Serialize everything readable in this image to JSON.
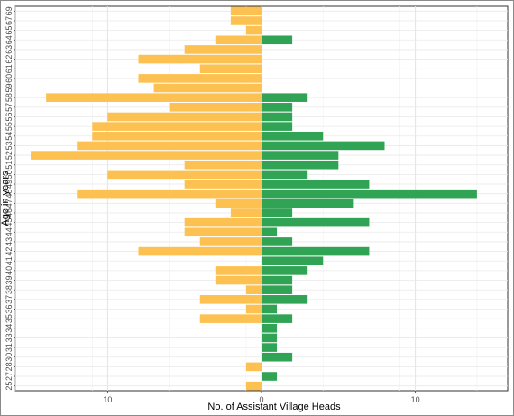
{
  "chart_data": {
    "type": "bar",
    "orientation": "horizontal",
    "layout": "population-pyramid",
    "title": "",
    "xlabel": "No. of Assistant Village Heads",
    "ylabel": "Age in years",
    "xlim": [
      -16,
      16
    ],
    "x_ticks": [
      -10,
      0,
      10
    ],
    "x_tick_labels": [
      "10",
      "0",
      "10"
    ],
    "grid": true,
    "legend": "none",
    "categories": [
      "25",
      "27",
      "28",
      "30",
      "31",
      "33",
      "34",
      "35",
      "36",
      "37",
      "38",
      "39",
      "40",
      "41",
      "42",
      "43",
      "44",
      "45",
      "46",
      "47",
      "48",
      "49",
      "50",
      "51",
      "52",
      "53",
      "54",
      "55",
      "56",
      "57",
      "58",
      "59",
      "60",
      "61",
      "62",
      "63",
      "64",
      "65",
      "67",
      "69"
    ],
    "series": [
      {
        "color": "#fdc152",
        "direction": "left",
        "values": [
          1,
          0,
          1,
          0,
          0,
          0,
          0,
          4,
          1,
          4,
          1,
          3,
          3,
          0,
          8,
          4,
          5,
          5,
          2,
          3,
          12,
          5,
          10,
          5,
          15,
          12,
          11,
          11,
          10,
          6,
          14,
          7,
          8,
          4,
          8,
          5,
          3,
          1,
          2,
          2
        ]
      },
      {
        "color": "#31a354",
        "direction": "right",
        "values": [
          0,
          1,
          0,
          2,
          1,
          1,
          1,
          2,
          1,
          3,
          2,
          2,
          3,
          4,
          7,
          2,
          1,
          7,
          2,
          6,
          14,
          7,
          3,
          5,
          5,
          8,
          4,
          2,
          2,
          2,
          3,
          0,
          0,
          0,
          0,
          0,
          2,
          0,
          0,
          0
        ]
      }
    ]
  }
}
